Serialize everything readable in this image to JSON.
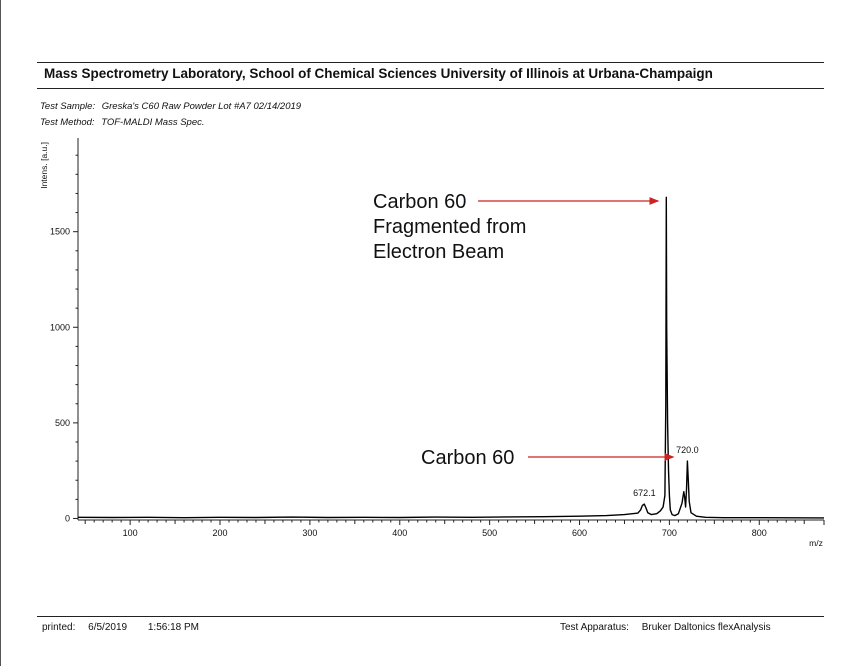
{
  "header": {
    "title": "Mass Spectrometry Laboratory, School of Chemical Sciences University of Illinois at Urbana-Champaign",
    "test_sample_label": "Test Sample:",
    "test_sample_value": "Greska's C60 Raw Powder Lot #A7 02/14/2019",
    "test_method_label": "Test Method:",
    "test_method_value": "TOF-MALDI Mass Spec."
  },
  "footer": {
    "printed_label": "printed:",
    "printed_date": "6/5/2019",
    "printed_time": "1:56:18 PM",
    "apparatus_label": "Test Apparatus:",
    "apparatus_value": "Bruker Daltonics flexAnalysis"
  },
  "chart_data": {
    "type": "line",
    "title": "",
    "xlabel": "m/z",
    "ylabel": "Intens. [a.u.]",
    "xlim": [
      42,
      872
    ],
    "ylim": [
      -8,
      1990
    ],
    "x_ticks": [
      100,
      200,
      300,
      400,
      500,
      600,
      700,
      800
    ],
    "y_ticks": [
      0,
      500,
      1000,
      1500
    ],
    "grid": false,
    "series": [
      {
        "x": [
          42,
          80,
          120,
          160,
          200,
          240,
          280,
          320,
          360,
          400,
          440,
          480,
          520,
          560,
          600,
          630,
          650,
          665,
          668,
          670,
          672.1,
          674,
          676,
          680,
          686,
          690,
          693,
          695,
          696,
          696.5,
          697,
          698,
          699,
          700,
          701,
          703,
          706,
          710,
          714,
          716,
          717,
          718,
          719,
          720.0,
          721,
          722,
          724,
          730,
          740,
          760,
          800,
          872
        ],
        "y": [
          6,
          5,
          6,
          4,
          6,
          5,
          7,
          5,
          6,
          5,
          7,
          6,
          8,
          9,
          12,
          15,
          20,
          28,
          45,
          68,
          75,
          55,
          30,
          20,
          25,
          40,
          60,
          120,
          600,
          1680,
          1000,
          500,
          255,
          120,
          45,
          20,
          15,
          25,
          80,
          140,
          110,
          60,
          150,
          300,
          200,
          90,
          30,
          12,
          6,
          4,
          4,
          3
        ]
      }
    ],
    "peak_labels": [
      {
        "x": 672.1,
        "text": "672.1"
      },
      {
        "x": 720.0,
        "text": "720.0"
      }
    ],
    "annotations": [
      {
        "lines": [
          "Carbon 60",
          "Fragmented from",
          "Electron Beam"
        ],
        "arrow_to_x": 696.5,
        "arrow_color": "#cc2222"
      },
      {
        "lines": [
          "Carbon 60"
        ],
        "arrow_to_x": 720.0,
        "arrow_color": "#cc2222"
      }
    ],
    "line_color": "#000000"
  }
}
